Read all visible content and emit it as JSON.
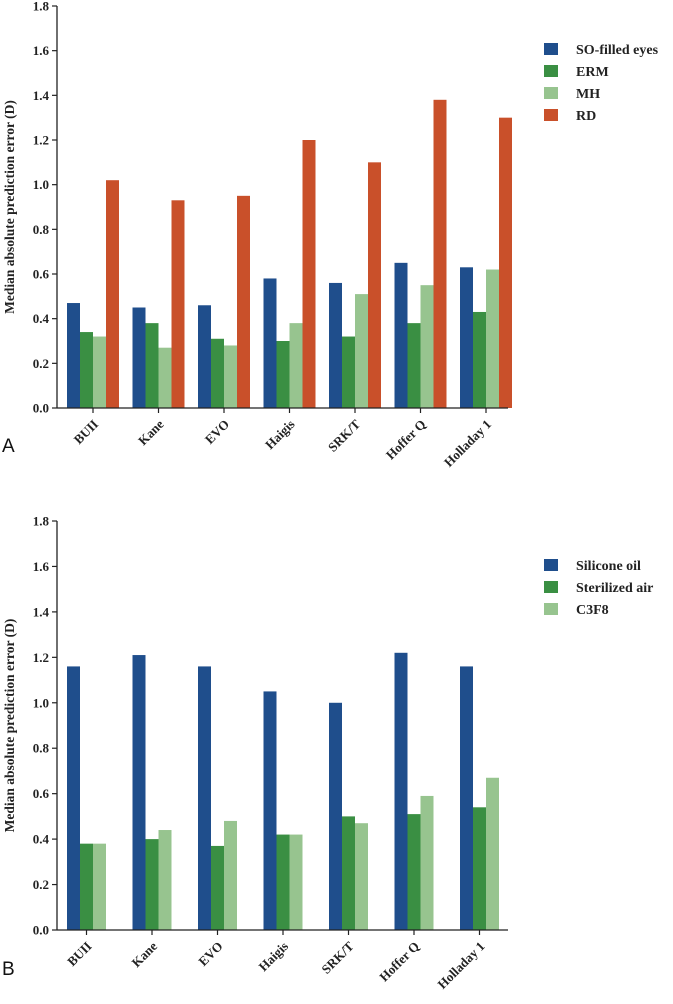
{
  "chart_data": [
    {
      "type": "bar",
      "panel_label": "A",
      "ylabel": "Median absolute prediction error (D)",
      "ylim": [
        0,
        1.8
      ],
      "yticks": [
        "0.0",
        "0.2",
        "0.4",
        "0.6",
        "0.8",
        "1.0",
        "1.2",
        "1.4",
        "1.6",
        "1.8"
      ],
      "categories": [
        "BUII",
        "Kane",
        "EVO",
        "Haigis",
        "SRK/T",
        "Hoffer Q",
        "Holladay 1"
      ],
      "legend_position": "top-right",
      "series": [
        {
          "name": "SO-filled eyes",
          "color": "#1f4e8c",
          "values": [
            0.47,
            0.45,
            0.46,
            0.58,
            0.56,
            0.65,
            0.63
          ]
        },
        {
          "name": "ERM",
          "color": "#3a8f43",
          "values": [
            0.34,
            0.38,
            0.31,
            0.3,
            0.32,
            0.38,
            0.43
          ]
        },
        {
          "name": "MH",
          "color": "#97c48f",
          "values": [
            0.32,
            0.27,
            0.28,
            0.38,
            0.51,
            0.55,
            0.62
          ]
        },
        {
          "name": "RD",
          "color": "#c9502a",
          "values": [
            1.02,
            0.93,
            0.95,
            1.2,
            1.1,
            1.38,
            1.3
          ]
        }
      ]
    },
    {
      "type": "bar",
      "panel_label": "B",
      "ylabel": "Median absolute prediction error (D)",
      "ylim": [
        0,
        1.8
      ],
      "yticks": [
        "0.0",
        "0.2",
        "0.4",
        "0.6",
        "0.8",
        "1.0",
        "1.2",
        "1.4",
        "1.6",
        "1.8"
      ],
      "categories": [
        "BUII",
        "Kane",
        "EVO",
        "Haigis",
        "SRK/T",
        "Hoffer Q",
        "Holladay 1"
      ],
      "legend_position": "top-right",
      "series": [
        {
          "name": "Silicone oil",
          "color": "#1f4e8c",
          "values": [
            1.16,
            1.21,
            1.16,
            1.05,
            1.0,
            1.22,
            1.16
          ]
        },
        {
          "name": "Sterilized air",
          "color": "#3a8f43",
          "values": [
            0.38,
            0.4,
            0.37,
            0.42,
            0.5,
            0.51,
            0.54
          ]
        },
        {
          "name": "C3F8",
          "color": "#97c48f",
          "values": [
            0.38,
            0.44,
            0.48,
            0.42,
            0.47,
            0.59,
            0.67
          ]
        }
      ]
    }
  ]
}
